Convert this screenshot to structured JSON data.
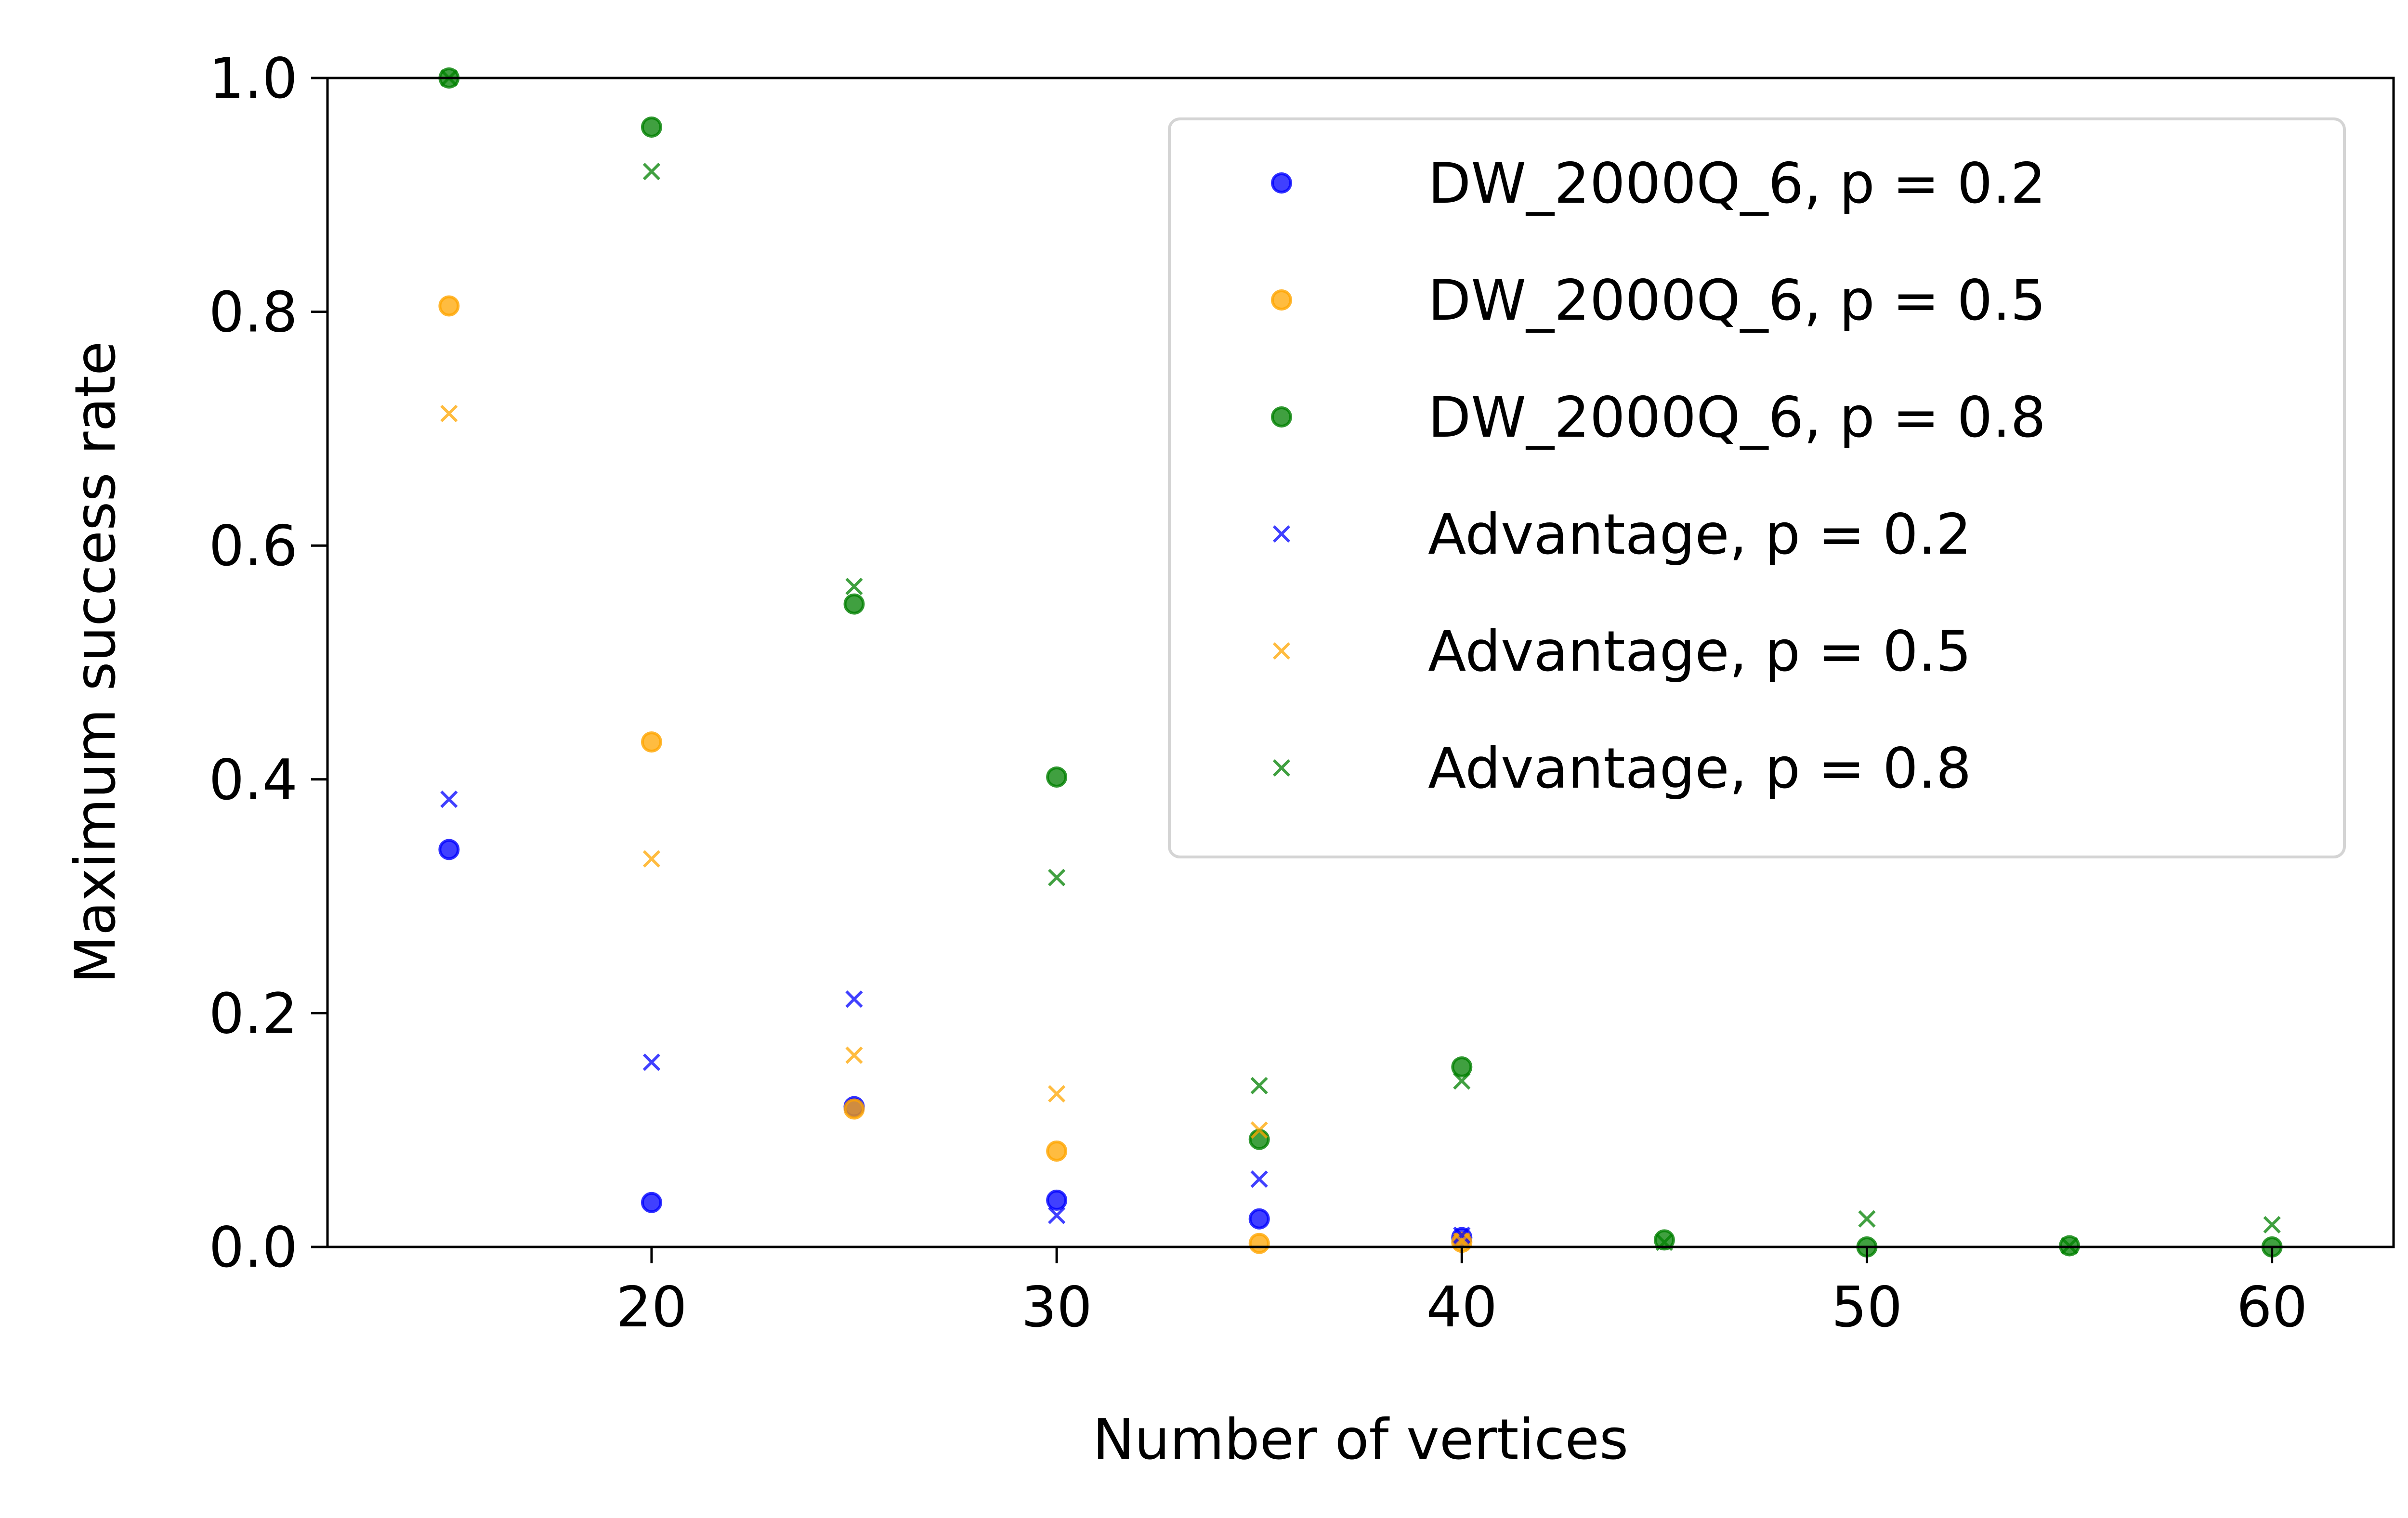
{
  "chart_data": {
    "type": "scatter",
    "xlabel": "Number of vertices",
    "ylabel": "Maximum success rate",
    "xlim": [
      12,
      63
    ],
    "ylim": [
      0.0,
      1.0
    ],
    "x_ticks": [
      "20",
      "30",
      "40",
      "50",
      "60"
    ],
    "y_ticks": [
      "0.0",
      "0.2",
      "0.4",
      "0.6",
      "0.8",
      "1.0"
    ],
    "grid": false,
    "legend_position": "upper-right",
    "series": [
      {
        "name": "DW_2000Q_6, p = 0.2",
        "marker": "circle",
        "color": "#0000ff",
        "x": [
          15,
          20,
          25,
          30,
          35,
          40
        ],
        "y": [
          0.34,
          0.038,
          0.12,
          0.04,
          0.024,
          0.008
        ]
      },
      {
        "name": "DW_2000Q_6, p = 0.5",
        "marker": "circle",
        "color": "#ffa500",
        "x": [
          15,
          20,
          25,
          30,
          35,
          40
        ],
        "y": [
          0.805,
          0.432,
          0.118,
          0.082,
          0.003,
          0.004
        ]
      },
      {
        "name": "DW_2000Q_6, p = 0.8",
        "marker": "circle",
        "color": "#008000",
        "x": [
          15,
          20,
          25,
          30,
          35,
          40,
          45,
          50,
          55,
          60
        ],
        "y": [
          1.0,
          0.958,
          0.55,
          0.402,
          0.092,
          0.154,
          0.006,
          0.0,
          0.001,
          0.0
        ]
      },
      {
        "name": "Advantage, p = 0.2",
        "marker": "x",
        "color": "#0000ff",
        "x": [
          15,
          20,
          25,
          30,
          35,
          40
        ],
        "y": [
          0.383,
          0.158,
          0.212,
          0.027,
          0.058,
          0.01
        ]
      },
      {
        "name": "Advantage, p = 0.5",
        "marker": "x",
        "color": "#ffa500",
        "x": [
          15,
          20,
          25,
          30,
          35,
          40
        ],
        "y": [
          0.713,
          0.332,
          0.164,
          0.131,
          0.1,
          0.005
        ]
      },
      {
        "name": "Advantage, p = 0.8",
        "marker": "x",
        "color": "#008000",
        "x": [
          15,
          20,
          25,
          30,
          35,
          40,
          45,
          50,
          55,
          60
        ],
        "y": [
          1.0,
          0.92,
          0.565,
          0.316,
          0.138,
          0.142,
          0.004,
          0.024,
          0.001,
          0.019
        ]
      }
    ]
  }
}
